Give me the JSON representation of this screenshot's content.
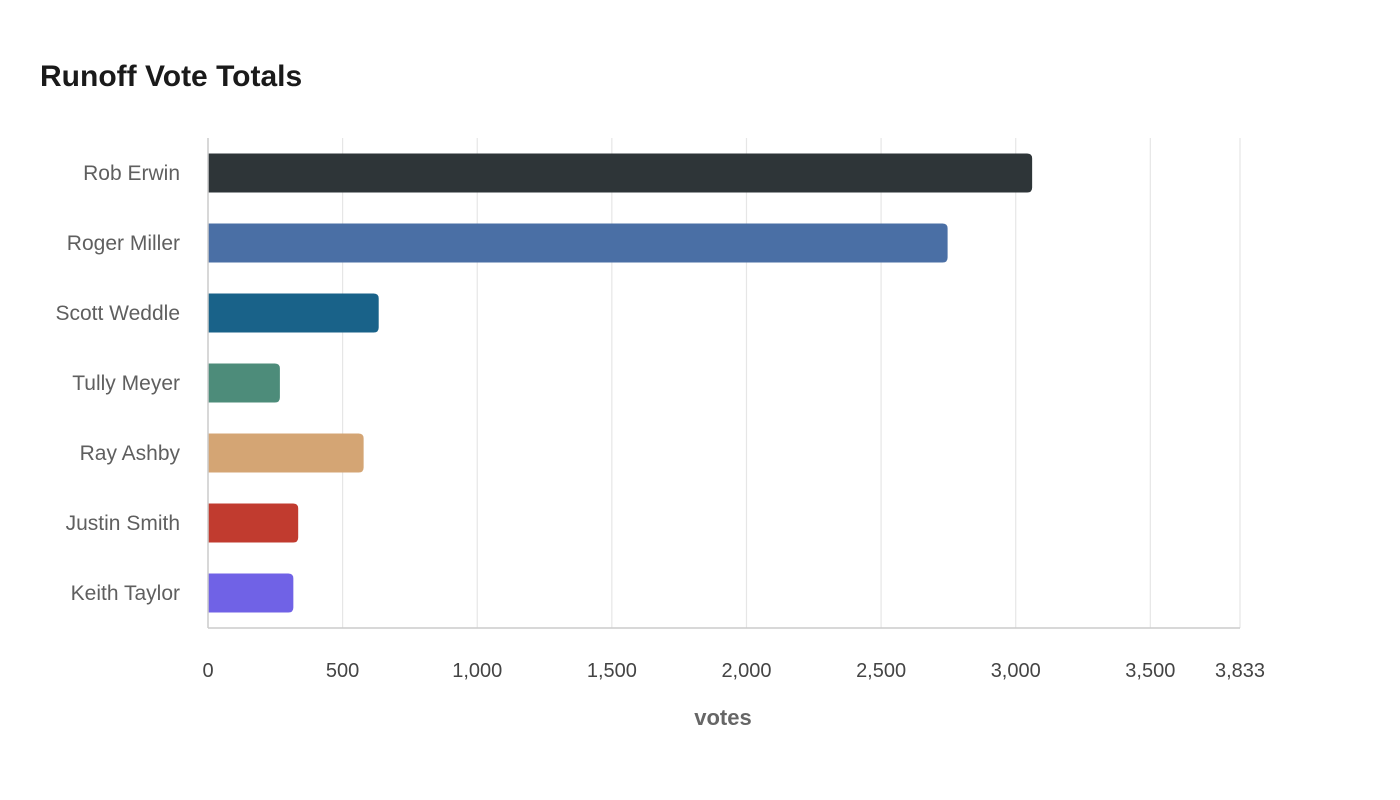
{
  "chart_data": {
    "type": "bar",
    "orientation": "horizontal",
    "title": "Runoff Vote Totals",
    "xlabel": "votes",
    "ylabel": "",
    "categories": [
      "Rob Erwin",
      "Roger Miller",
      "Scott Weddle",
      "Tully Meyer",
      "Ray Ashby",
      "Justin Smith",
      "Keith Taylor"
    ],
    "values": [
      3061,
      2747,
      634,
      267,
      578,
      335,
      317
    ],
    "colors": [
      "#2e3538",
      "#4a6fa5",
      "#196289",
      "#4d8c7a",
      "#d4a574",
      "#c13b2f",
      "#7062e6"
    ],
    "xlim": [
      0,
      3833
    ],
    "x_ticks": [
      0,
      500,
      1000,
      1500,
      2000,
      2500,
      3000,
      3500,
      3833
    ],
    "x_tick_labels": [
      "0",
      "500",
      "1,000",
      "1,500",
      "2,000",
      "2,500",
      "3,000",
      "3,500",
      "3,833"
    ],
    "data_labels_visible": false,
    "grid": "vertical",
    "legend": "none",
    "gridline_color": "#e6e6e6",
    "axis_color": "#cccccc"
  }
}
